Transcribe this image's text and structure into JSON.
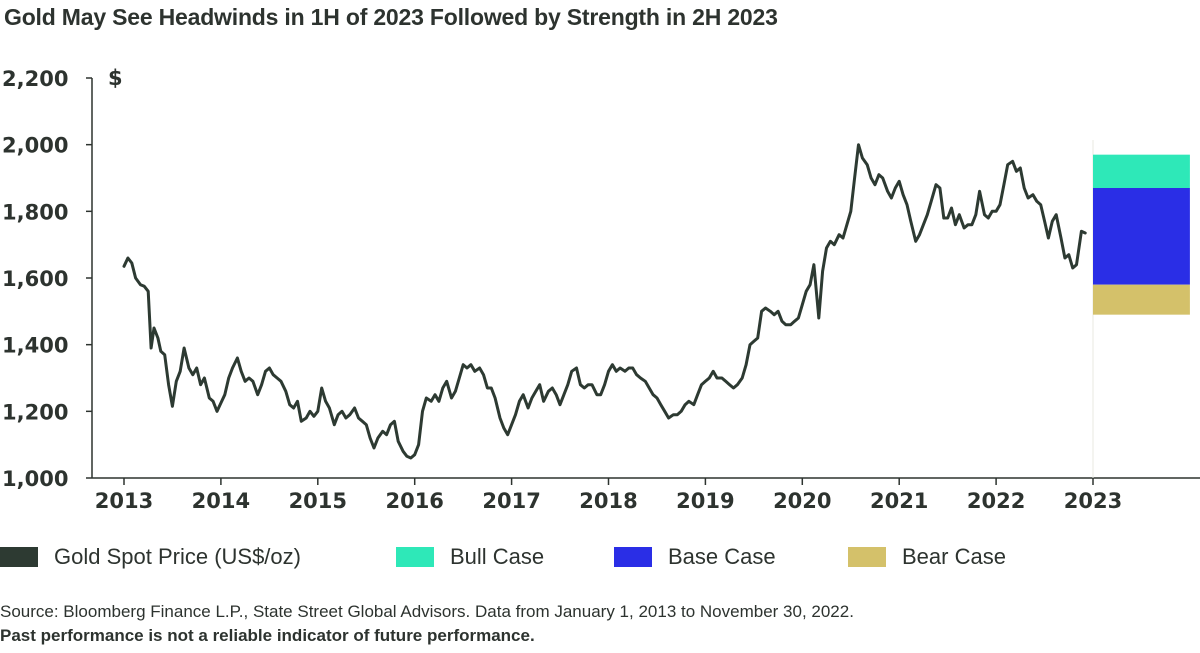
{
  "chart_data": {
    "type": "line",
    "title": "Gold May See Headwinds in 1H of 2023 Followed by Strength in 2H 2023",
    "ylabel": "$",
    "xlabel": "",
    "ylim": [
      1000,
      2200
    ],
    "xlim": [
      2013,
      2024
    ],
    "y_ticks": [
      1000,
      1200,
      1400,
      1600,
      1800,
      2000,
      2200
    ],
    "y_tick_labels": [
      "1,000",
      "1,200",
      "1,400",
      "1,600",
      "1,800",
      "2,000",
      "2,200"
    ],
    "x_ticks": [
      2013,
      2014,
      2015,
      2016,
      2017,
      2018,
      2019,
      2020,
      2021,
      2022,
      2023
    ],
    "x_tick_labels": [
      "2013",
      "2014",
      "2015",
      "2016",
      "2017",
      "2018",
      "2019",
      "2020",
      "2021",
      "2022",
      "2023"
    ],
    "grid": false,
    "legend_position": "bottom",
    "series": [
      {
        "name": "Gold Spot Price (US$/oz)",
        "color": "#2d3a32",
        "points": [
          [
            2013.0,
            1635
          ],
          [
            2013.04,
            1660
          ],
          [
            2013.08,
            1645
          ],
          [
            2013.12,
            1600
          ],
          [
            2013.17,
            1580
          ],
          [
            2013.21,
            1575
          ],
          [
            2013.25,
            1560
          ],
          [
            2013.28,
            1390
          ],
          [
            2013.31,
            1450
          ],
          [
            2013.35,
            1420
          ],
          [
            2013.38,
            1380
          ],
          [
            2013.42,
            1370
          ],
          [
            2013.46,
            1280
          ],
          [
            2013.5,
            1215
          ],
          [
            2013.54,
            1290
          ],
          [
            2013.58,
            1320
          ],
          [
            2013.62,
            1390
          ],
          [
            2013.67,
            1330
          ],
          [
            2013.71,
            1310
          ],
          [
            2013.75,
            1330
          ],
          [
            2013.79,
            1280
          ],
          [
            2013.83,
            1300
          ],
          [
            2013.88,
            1240
          ],
          [
            2013.92,
            1230
          ],
          [
            2013.96,
            1200
          ],
          [
            2014.0,
            1225
          ],
          [
            2014.04,
            1250
          ],
          [
            2014.08,
            1300
          ],
          [
            2014.12,
            1330
          ],
          [
            2014.17,
            1360
          ],
          [
            2014.21,
            1320
          ],
          [
            2014.25,
            1290
          ],
          [
            2014.29,
            1300
          ],
          [
            2014.33,
            1290
          ],
          [
            2014.38,
            1250
          ],
          [
            2014.42,
            1280
          ],
          [
            2014.46,
            1320
          ],
          [
            2014.5,
            1330
          ],
          [
            2014.54,
            1310
          ],
          [
            2014.58,
            1300
          ],
          [
            2014.62,
            1290
          ],
          [
            2014.67,
            1260
          ],
          [
            2014.71,
            1220
          ],
          [
            2014.75,
            1210
          ],
          [
            2014.79,
            1230
          ],
          [
            2014.83,
            1170
          ],
          [
            2014.88,
            1180
          ],
          [
            2014.92,
            1200
          ],
          [
            2014.96,
            1185
          ],
          [
            2015.0,
            1200
          ],
          [
            2015.04,
            1270
          ],
          [
            2015.08,
            1230
          ],
          [
            2015.12,
            1210
          ],
          [
            2015.17,
            1160
          ],
          [
            2015.21,
            1190
          ],
          [
            2015.25,
            1200
          ],
          [
            2015.29,
            1180
          ],
          [
            2015.33,
            1190
          ],
          [
            2015.38,
            1210
          ],
          [
            2015.42,
            1180
          ],
          [
            2015.46,
            1170
          ],
          [
            2015.5,
            1160
          ],
          [
            2015.54,
            1120
          ],
          [
            2015.58,
            1090
          ],
          [
            2015.62,
            1120
          ],
          [
            2015.67,
            1140
          ],
          [
            2015.71,
            1130
          ],
          [
            2015.75,
            1160
          ],
          [
            2015.79,
            1170
          ],
          [
            2015.83,
            1110
          ],
          [
            2015.88,
            1080
          ],
          [
            2015.92,
            1065
          ],
          [
            2015.96,
            1060
          ],
          [
            2016.0,
            1070
          ],
          [
            2016.04,
            1100
          ],
          [
            2016.08,
            1200
          ],
          [
            2016.12,
            1240
          ],
          [
            2016.17,
            1230
          ],
          [
            2016.21,
            1250
          ],
          [
            2016.25,
            1230
          ],
          [
            2016.29,
            1270
          ],
          [
            2016.33,
            1290
          ],
          [
            2016.38,
            1240
          ],
          [
            2016.42,
            1260
          ],
          [
            2016.46,
            1300
          ],
          [
            2016.5,
            1340
          ],
          [
            2016.54,
            1330
          ],
          [
            2016.58,
            1340
          ],
          [
            2016.62,
            1320
          ],
          [
            2016.67,
            1330
          ],
          [
            2016.71,
            1310
          ],
          [
            2016.75,
            1270
          ],
          [
            2016.79,
            1270
          ],
          [
            2016.83,
            1240
          ],
          [
            2016.88,
            1180
          ],
          [
            2016.92,
            1150
          ],
          [
            2016.96,
            1130
          ],
          [
            2017.0,
            1160
          ],
          [
            2017.04,
            1190
          ],
          [
            2017.08,
            1230
          ],
          [
            2017.12,
            1250
          ],
          [
            2017.17,
            1210
          ],
          [
            2017.21,
            1240
          ],
          [
            2017.25,
            1260
          ],
          [
            2017.29,
            1280
          ],
          [
            2017.33,
            1230
          ],
          [
            2017.38,
            1260
          ],
          [
            2017.42,
            1270
          ],
          [
            2017.46,
            1250
          ],
          [
            2017.5,
            1220
          ],
          [
            2017.54,
            1250
          ],
          [
            2017.58,
            1280
          ],
          [
            2017.62,
            1320
          ],
          [
            2017.67,
            1330
          ],
          [
            2017.71,
            1280
          ],
          [
            2017.75,
            1270
          ],
          [
            2017.79,
            1280
          ],
          [
            2017.83,
            1280
          ],
          [
            2017.88,
            1250
          ],
          [
            2017.92,
            1250
          ],
          [
            2017.96,
            1280
          ],
          [
            2018.0,
            1320
          ],
          [
            2018.04,
            1340
          ],
          [
            2018.08,
            1320
          ],
          [
            2018.12,
            1330
          ],
          [
            2018.17,
            1320
          ],
          [
            2018.21,
            1330
          ],
          [
            2018.25,
            1330
          ],
          [
            2018.29,
            1310
          ],
          [
            2018.33,
            1300
          ],
          [
            2018.38,
            1290
          ],
          [
            2018.42,
            1270
          ],
          [
            2018.46,
            1250
          ],
          [
            2018.5,
            1240
          ],
          [
            2018.54,
            1220
          ],
          [
            2018.58,
            1200
          ],
          [
            2018.62,
            1180
          ],
          [
            2018.67,
            1190
          ],
          [
            2018.71,
            1190
          ],
          [
            2018.75,
            1200
          ],
          [
            2018.79,
            1220
          ],
          [
            2018.83,
            1230
          ],
          [
            2018.88,
            1220
          ],
          [
            2018.92,
            1250
          ],
          [
            2018.96,
            1280
          ],
          [
            2019.0,
            1290
          ],
          [
            2019.04,
            1300
          ],
          [
            2019.08,
            1320
          ],
          [
            2019.12,
            1300
          ],
          [
            2019.17,
            1300
          ],
          [
            2019.21,
            1290
          ],
          [
            2019.25,
            1280
          ],
          [
            2019.29,
            1270
          ],
          [
            2019.33,
            1280
          ],
          [
            2019.38,
            1300
          ],
          [
            2019.42,
            1340
          ],
          [
            2019.46,
            1400
          ],
          [
            2019.5,
            1410
          ],
          [
            2019.54,
            1420
          ],
          [
            2019.58,
            1500
          ],
          [
            2019.62,
            1510
          ],
          [
            2019.67,
            1500
          ],
          [
            2019.71,
            1490
          ],
          [
            2019.75,
            1500
          ],
          [
            2019.79,
            1470
          ],
          [
            2019.83,
            1460
          ],
          [
            2019.88,
            1460
          ],
          [
            2019.92,
            1470
          ],
          [
            2019.96,
            1480
          ],
          [
            2020.0,
            1520
          ],
          [
            2020.04,
            1560
          ],
          [
            2020.08,
            1580
          ],
          [
            2020.12,
            1640
          ],
          [
            2020.17,
            1480
          ],
          [
            2020.21,
            1620
          ],
          [
            2020.25,
            1690
          ],
          [
            2020.29,
            1710
          ],
          [
            2020.33,
            1700
          ],
          [
            2020.38,
            1730
          ],
          [
            2020.42,
            1720
          ],
          [
            2020.46,
            1760
          ],
          [
            2020.5,
            1800
          ],
          [
            2020.54,
            1900
          ],
          [
            2020.58,
            2000
          ],
          [
            2020.62,
            1960
          ],
          [
            2020.67,
            1940
          ],
          [
            2020.71,
            1900
          ],
          [
            2020.75,
            1880
          ],
          [
            2020.79,
            1910
          ],
          [
            2020.83,
            1900
          ],
          [
            2020.88,
            1860
          ],
          [
            2020.92,
            1840
          ],
          [
            2020.96,
            1870
          ],
          [
            2021.0,
            1890
          ],
          [
            2021.04,
            1850
          ],
          [
            2021.08,
            1820
          ],
          [
            2021.12,
            1770
          ],
          [
            2021.17,
            1710
          ],
          [
            2021.21,
            1730
          ],
          [
            2021.25,
            1760
          ],
          [
            2021.29,
            1790
          ],
          [
            2021.33,
            1830
          ],
          [
            2021.38,
            1880
          ],
          [
            2021.42,
            1870
          ],
          [
            2021.46,
            1780
          ],
          [
            2021.5,
            1780
          ],
          [
            2021.54,
            1810
          ],
          [
            2021.58,
            1760
          ],
          [
            2021.62,
            1790
          ],
          [
            2021.67,
            1750
          ],
          [
            2021.71,
            1760
          ],
          [
            2021.75,
            1760
          ],
          [
            2021.79,
            1790
          ],
          [
            2021.83,
            1860
          ],
          [
            2021.88,
            1790
          ],
          [
            2021.92,
            1780
          ],
          [
            2021.96,
            1800
          ],
          [
            2022.0,
            1800
          ],
          [
            2022.04,
            1820
          ],
          [
            2022.08,
            1880
          ],
          [
            2022.12,
            1940
          ],
          [
            2022.17,
            1950
          ],
          [
            2022.21,
            1920
          ],
          [
            2022.25,
            1930
          ],
          [
            2022.29,
            1870
          ],
          [
            2022.33,
            1840
          ],
          [
            2022.38,
            1850
          ],
          [
            2022.42,
            1830
          ],
          [
            2022.46,
            1820
          ],
          [
            2022.5,
            1770
          ],
          [
            2022.54,
            1720
          ],
          [
            2022.58,
            1770
          ],
          [
            2022.62,
            1790
          ],
          [
            2022.67,
            1720
          ],
          [
            2022.71,
            1660
          ],
          [
            2022.75,
            1670
          ],
          [
            2022.79,
            1630
          ],
          [
            2022.83,
            1640
          ],
          [
            2022.88,
            1740
          ],
          [
            2022.92,
            1735
          ]
        ]
      },
      {
        "name": "Bull Case",
        "color": "#2ee8b8",
        "range": [
          1870,
          1970
        ]
      },
      {
        "name": "Base Case",
        "color": "#2a2ee6",
        "range": [
          1580,
          1870
        ]
      },
      {
        "name": "Bear Case",
        "color": "#d4c16a",
        "range": [
          1490,
          1580
        ]
      }
    ],
    "forecast_period": [
      2023.0,
      2024.0
    ]
  },
  "legend": {
    "items": [
      {
        "label": "Gold Spot Price (US$/oz)",
        "color": "#2d3a32"
      },
      {
        "label": "Bull Case",
        "color": "#2ee8b8"
      },
      {
        "label": "Base Case",
        "color": "#2a2ee6"
      },
      {
        "label": "Bear Case",
        "color": "#d4c16a"
      }
    ]
  },
  "footer": {
    "source": "Source: Bloomberg Finance L.P., State Street Global Advisors. Data from January 1, 2013 to November 30, 2022.",
    "disclaimer": "Past performance is not a reliable indicator of future performance."
  }
}
